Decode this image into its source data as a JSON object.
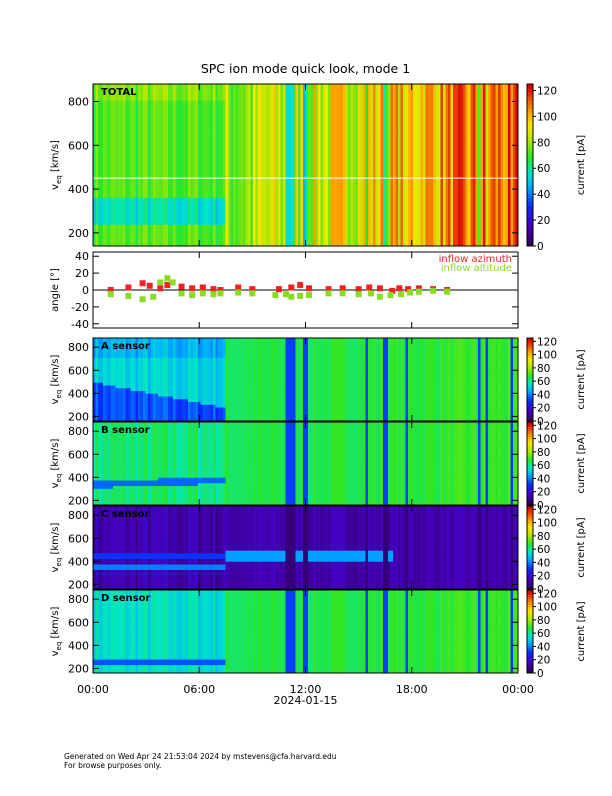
{
  "title": "SPC ion mode quick look, mode 1",
  "colors": {
    "inflow_azimuth": "#ee2222",
    "inflow_altitude": "#88dd22",
    "grid_line": "#ffffff"
  },
  "chart_data": [
    {
      "type": "heatmap",
      "panel": "TOTAL",
      "label": "TOTAL",
      "ylabel": "v_eq [km/s]",
      "ylim": [
        140,
        880
      ],
      "yticks": [
        200,
        400,
        600,
        800
      ],
      "colorbar": {
        "label": "current [pA]",
        "range": [
          0,
          125
        ],
        "ticks": [
          0,
          20,
          40,
          60,
          80,
          100,
          120
        ]
      },
      "reference_line_kms": 450
    },
    {
      "type": "scatter",
      "panel": "angle",
      "ylabel": "angle [°]",
      "ylim": [
        -45,
        45
      ],
      "yticks": [
        -40,
        -20,
        0,
        20,
        40
      ],
      "series": [
        {
          "name": "inflow azimuth",
          "color": "#ee2222",
          "points": [
            [
              1.0,
              0
            ],
            [
              2.0,
              3
            ],
            [
              2.8,
              8
            ],
            [
              3.2,
              5
            ],
            [
              3.8,
              2
            ],
            [
              4.2,
              6
            ],
            [
              5.0,
              4
            ],
            [
              5.6,
              2
            ],
            [
              6.2,
              3
            ],
            [
              6.8,
              1
            ],
            [
              7.2,
              0
            ],
            [
              8.2,
              3
            ],
            [
              9.0,
              1
            ],
            [
              10.5,
              1
            ],
            [
              11.2,
              3
            ],
            [
              11.7,
              6
            ],
            [
              12.2,
              2
            ],
            [
              13.3,
              1
            ],
            [
              14.1,
              2
            ],
            [
              15.0,
              1
            ],
            [
              15.6,
              3
            ],
            [
              16.2,
              2
            ],
            [
              16.9,
              -1
            ],
            [
              17.3,
              2
            ],
            [
              17.8,
              1
            ],
            [
              18.4,
              2
            ],
            [
              19.2,
              1
            ],
            [
              20.0,
              0
            ]
          ]
        },
        {
          "name": "inflow altitude",
          "color": "#88dd22",
          "points": [
            [
              1.0,
              -5
            ],
            [
              2.0,
              -7
            ],
            [
              2.8,
              -11
            ],
            [
              3.4,
              -8
            ],
            [
              3.8,
              9
            ],
            [
              4.2,
              14
            ],
            [
              4.5,
              9
            ],
            [
              5.0,
              -4
            ],
            [
              5.6,
              -6
            ],
            [
              6.2,
              -4
            ],
            [
              6.8,
              -5
            ],
            [
              7.2,
              -4
            ],
            [
              8.2,
              -3
            ],
            [
              9.0,
              -4
            ],
            [
              10.3,
              -6
            ],
            [
              10.9,
              -5
            ],
            [
              11.2,
              -8
            ],
            [
              11.7,
              -7
            ],
            [
              12.2,
              -6
            ],
            [
              13.3,
              -4
            ],
            [
              14.1,
              -4
            ],
            [
              15.0,
              -5
            ],
            [
              15.7,
              -4
            ],
            [
              16.2,
              -8
            ],
            [
              16.8,
              -6
            ],
            [
              17.4,
              -5
            ],
            [
              17.9,
              -3
            ],
            [
              18.4,
              -2
            ],
            [
              19.2,
              -1
            ],
            [
              20.0,
              -2
            ]
          ]
        }
      ]
    },
    {
      "type": "heatmap",
      "panel": "A sensor",
      "label": "A sensor",
      "ylabel": "v_eq [km/s]",
      "ylim": [
        160,
        880
      ],
      "yticks": [
        200,
        400,
        600,
        800
      ],
      "colorbar": {
        "label": "current [pA]",
        "range": [
          0,
          125
        ],
        "ticks": [
          0,
          20,
          40,
          60,
          80,
          100,
          120
        ]
      }
    },
    {
      "type": "heatmap",
      "panel": "B sensor",
      "label": "B sensor",
      "ylabel": "v_eq [km/s]",
      "ylim": [
        160,
        880
      ],
      "yticks": [
        200,
        400,
        600,
        800
      ],
      "colorbar": {
        "label": "current [pA]",
        "range": [
          0,
          125
        ],
        "ticks": [
          0,
          20,
          40,
          60,
          80,
          100,
          120
        ]
      }
    },
    {
      "type": "heatmap",
      "panel": "C sensor",
      "label": "C sensor",
      "ylabel": "v_eq [km/s]",
      "ylim": [
        160,
        880
      ],
      "yticks": [
        200,
        400,
        600,
        800
      ],
      "colorbar": {
        "label": "current [pA]",
        "range": [
          0,
          125
        ],
        "ticks": [
          0,
          20,
          40,
          60,
          80,
          100,
          120
        ]
      }
    },
    {
      "type": "heatmap",
      "panel": "D sensor",
      "label": "D sensor",
      "ylabel": "v_eq [km/s]",
      "ylim": [
        160,
        880
      ],
      "yticks": [
        200,
        400,
        600,
        800
      ],
      "colorbar": {
        "label": "current [pA]",
        "range": [
          0,
          125
        ],
        "ticks": [
          0,
          20,
          40,
          60,
          80,
          100,
          120
        ]
      }
    }
  ],
  "x_axis": {
    "range_hours": [
      0,
      24
    ],
    "ticks": [
      0,
      6,
      12,
      18,
      24
    ],
    "tick_labels": [
      "00:00",
      "06:00",
      "12:00",
      "18:00",
      "00:00"
    ],
    "date_label": "2024-01-15"
  },
  "footer": {
    "line1": "Generated on Wed Apr 24 21:53:04 2024 by mstevens@cfa.harvard.edu",
    "line2": "For browse purposes only."
  }
}
